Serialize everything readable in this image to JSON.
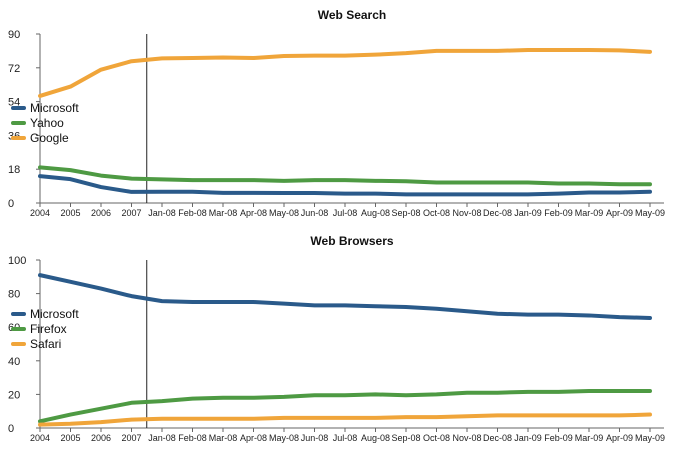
{
  "chart_data": [
    {
      "type": "line",
      "title": "Web Search",
      "xlabel": "",
      "ylabel": "",
      "categories": [
        "2004",
        "2005",
        "2006",
        "2007",
        "Jan-08",
        "Feb-08",
        "Mar-08",
        "Apr-08",
        "May-08",
        "Jun-08",
        "Jul-08",
        "Aug-08",
        "Sep-08",
        "Oct-08",
        "Nov-08",
        "Dec-08",
        "Jan-09",
        "Feb-09",
        "Mar-09",
        "Apr-09",
        "May-09"
      ],
      "ylim": [
        0,
        90
      ],
      "yticks": [
        "0",
        "18",
        "36",
        "54",
        "72",
        "90"
      ],
      "grid": false,
      "legend_position": "left",
      "divider_after_category": "2007",
      "series": [
        {
          "name": "Microsoft",
          "color": "#2a5a8a",
          "values": [
            14.3,
            12.7,
            8.5,
            5.9,
            6.0,
            6.0,
            5.4,
            5.4,
            5.3,
            5.3,
            5.0,
            5.0,
            4.6,
            4.6,
            4.6,
            4.6,
            4.6,
            5.0,
            5.6,
            5.6,
            6.0
          ]
        },
        {
          "name": "Yahoo",
          "color": "#4e9a43",
          "values": [
            19.0,
            17.5,
            14.6,
            13.0,
            12.6,
            12.2,
            12.2,
            12.2,
            11.8,
            12.2,
            12.2,
            11.8,
            11.6,
            10.9,
            10.9,
            10.9,
            10.9,
            10.4,
            10.4,
            10.0,
            10.0
          ]
        },
        {
          "name": "Google",
          "color": "#f0a53a",
          "values": [
            57.0,
            62.0,
            71.0,
            75.5,
            77.0,
            77.2,
            77.5,
            77.2,
            78.3,
            78.5,
            78.5,
            79.0,
            79.8,
            81.0,
            81.0,
            81.0,
            81.5,
            81.5,
            81.5,
            81.3,
            80.5
          ]
        }
      ]
    },
    {
      "type": "line",
      "title": "Web Browsers",
      "xlabel": "",
      "ylabel": "",
      "categories": [
        "2004",
        "2005",
        "2006",
        "2007",
        "Jan-08",
        "Feb-08",
        "Mar-08",
        "Apr-08",
        "May-08",
        "Jun-08",
        "Jul-08",
        "Aug-08",
        "Sep-08",
        "Oct-08",
        "Nov-08",
        "Dec-08",
        "Jan-09",
        "Feb-09",
        "Mar-09",
        "Apr-09",
        "May-09"
      ],
      "ylim": [
        0,
        100
      ],
      "yticks": [
        "0",
        "20",
        "40",
        "60",
        "80",
        "100"
      ],
      "grid": false,
      "legend_position": "left",
      "divider_after_category": "2007",
      "series": [
        {
          "name": "Microsoft",
          "color": "#2a5a8a",
          "values": [
            91.0,
            87.0,
            83.0,
            78.5,
            75.5,
            75.0,
            75.0,
            75.0,
            74.0,
            73.0,
            73.0,
            72.5,
            72.0,
            71.0,
            69.5,
            68.0,
            67.5,
            67.5,
            67.0,
            66.0,
            65.5
          ]
        },
        {
          "name": "Firefox",
          "color": "#4e9a43",
          "values": [
            4.0,
            8.0,
            11.5,
            15.0,
            16.0,
            17.5,
            18.0,
            18.0,
            18.5,
            19.5,
            19.5,
            20.0,
            19.5,
            20.0,
            21.0,
            21.0,
            21.5,
            21.5,
            22.0,
            22.0,
            22.0
          ]
        },
        {
          "name": "Safari",
          "color": "#f0a53a",
          "values": [
            2.0,
            2.5,
            3.5,
            5.0,
            5.5,
            5.5,
            5.5,
            5.5,
            6.0,
            6.0,
            6.0,
            6.0,
            6.5,
            6.5,
            7.0,
            7.5,
            7.5,
            7.5,
            7.5,
            7.5,
            8.0
          ]
        }
      ]
    }
  ]
}
